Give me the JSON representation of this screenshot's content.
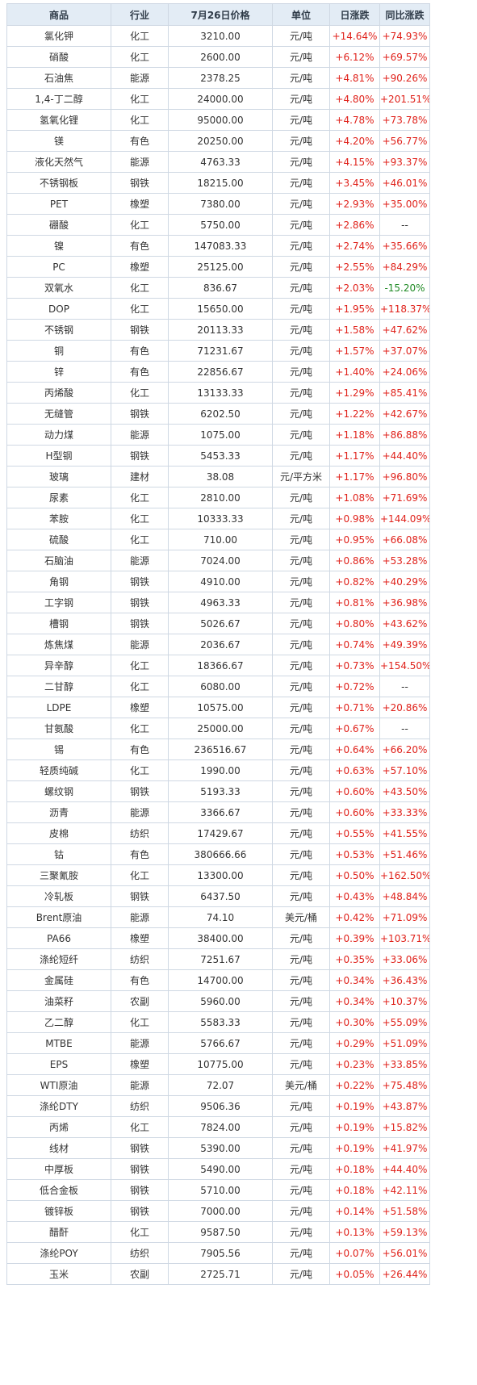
{
  "columns": [
    "商品",
    "行业",
    "7月26日价格",
    "单位",
    "日涨跌",
    "同比涨跌"
  ],
  "colors": {
    "up": "#e0221b",
    "down": "#1f8a24",
    "header_bg": "#e3ecf5",
    "border": "#cfd8e3"
  },
  "rows": [
    [
      "氯化钾",
      "化工",
      "3210.00",
      "元/吨",
      "+14.64%",
      "+74.93%"
    ],
    [
      "硝酸",
      "化工",
      "2600.00",
      "元/吨",
      "+6.12%",
      "+69.57%"
    ],
    [
      "石油焦",
      "能源",
      "2378.25",
      "元/吨",
      "+4.81%",
      "+90.26%"
    ],
    [
      "1,4-丁二醇",
      "化工",
      "24000.00",
      "元/吨",
      "+4.80%",
      "+201.51%"
    ],
    [
      "氢氧化锂",
      "化工",
      "95000.00",
      "元/吨",
      "+4.78%",
      "+73.78%"
    ],
    [
      "镁",
      "有色",
      "20250.00",
      "元/吨",
      "+4.20%",
      "+56.77%"
    ],
    [
      "液化天然气",
      "能源",
      "4763.33",
      "元/吨",
      "+4.15%",
      "+93.37%"
    ],
    [
      "不锈钢板",
      "钢铁",
      "18215.00",
      "元/吨",
      "+3.45%",
      "+46.01%"
    ],
    [
      "PET",
      "橡塑",
      "7380.00",
      "元/吨",
      "+2.93%",
      "+35.00%"
    ],
    [
      "硼酸",
      "化工",
      "5750.00",
      "元/吨",
      "+2.86%",
      "--"
    ],
    [
      "镍",
      "有色",
      "147083.33",
      "元/吨",
      "+2.74%",
      "+35.66%"
    ],
    [
      "PC",
      "橡塑",
      "25125.00",
      "元/吨",
      "+2.55%",
      "+84.29%"
    ],
    [
      "双氧水",
      "化工",
      "836.67",
      "元/吨",
      "+2.03%",
      "-15.20%"
    ],
    [
      "DOP",
      "化工",
      "15650.00",
      "元/吨",
      "+1.95%",
      "+118.37%"
    ],
    [
      "不锈钢",
      "钢铁",
      "20113.33",
      "元/吨",
      "+1.58%",
      "+47.62%"
    ],
    [
      "铜",
      "有色",
      "71231.67",
      "元/吨",
      "+1.57%",
      "+37.07%"
    ],
    [
      "锌",
      "有色",
      "22856.67",
      "元/吨",
      "+1.40%",
      "+24.06%"
    ],
    [
      "丙烯酸",
      "化工",
      "13133.33",
      "元/吨",
      "+1.29%",
      "+85.41%"
    ],
    [
      "无缝管",
      "钢铁",
      "6202.50",
      "元/吨",
      "+1.22%",
      "+42.67%"
    ],
    [
      "动力煤",
      "能源",
      "1075.00",
      "元/吨",
      "+1.18%",
      "+86.88%"
    ],
    [
      "H型钢",
      "钢铁",
      "5453.33",
      "元/吨",
      "+1.17%",
      "+44.40%"
    ],
    [
      "玻璃",
      "建材",
      "38.08",
      "元/平方米",
      "+1.17%",
      "+96.80%"
    ],
    [
      "尿素",
      "化工",
      "2810.00",
      "元/吨",
      "+1.08%",
      "+71.69%"
    ],
    [
      "苯胺",
      "化工",
      "10333.33",
      "元/吨",
      "+0.98%",
      "+144.09%"
    ],
    [
      "硫酸",
      "化工",
      "710.00",
      "元/吨",
      "+0.95%",
      "+66.08%"
    ],
    [
      "石脑油",
      "能源",
      "7024.00",
      "元/吨",
      "+0.86%",
      "+53.28%"
    ],
    [
      "角钢",
      "钢铁",
      "4910.00",
      "元/吨",
      "+0.82%",
      "+40.29%"
    ],
    [
      "工字钢",
      "钢铁",
      "4963.33",
      "元/吨",
      "+0.81%",
      "+36.98%"
    ],
    [
      "槽钢",
      "钢铁",
      "5026.67",
      "元/吨",
      "+0.80%",
      "+43.62%"
    ],
    [
      "炼焦煤",
      "能源",
      "2036.67",
      "元/吨",
      "+0.74%",
      "+49.39%"
    ],
    [
      "异辛醇",
      "化工",
      "18366.67",
      "元/吨",
      "+0.73%",
      "+154.50%"
    ],
    [
      "二甘醇",
      "化工",
      "6080.00",
      "元/吨",
      "+0.72%",
      "--"
    ],
    [
      "LDPE",
      "橡塑",
      "10575.00",
      "元/吨",
      "+0.71%",
      "+20.86%"
    ],
    [
      "甘氨酸",
      "化工",
      "25000.00",
      "元/吨",
      "+0.67%",
      "--"
    ],
    [
      "锡",
      "有色",
      "236516.67",
      "元/吨",
      "+0.64%",
      "+66.20%"
    ],
    [
      "轻质纯碱",
      "化工",
      "1990.00",
      "元/吨",
      "+0.63%",
      "+57.10%"
    ],
    [
      "螺纹钢",
      "钢铁",
      "5193.33",
      "元/吨",
      "+0.60%",
      "+43.50%"
    ],
    [
      "沥青",
      "能源",
      "3366.67",
      "元/吨",
      "+0.60%",
      "+33.33%"
    ],
    [
      "皮棉",
      "纺织",
      "17429.67",
      "元/吨",
      "+0.55%",
      "+41.55%"
    ],
    [
      "钴",
      "有色",
      "380666.66",
      "元/吨",
      "+0.53%",
      "+51.46%"
    ],
    [
      "三聚氰胺",
      "化工",
      "13300.00",
      "元/吨",
      "+0.50%",
      "+162.50%"
    ],
    [
      "冷轧板",
      "钢铁",
      "6437.50",
      "元/吨",
      "+0.43%",
      "+48.84%"
    ],
    [
      "Brent原油",
      "能源",
      "74.10",
      "美元/桶",
      "+0.42%",
      "+71.09%"
    ],
    [
      "PA66",
      "橡塑",
      "38400.00",
      "元/吨",
      "+0.39%",
      "+103.71%"
    ],
    [
      "涤纶短纤",
      "纺织",
      "7251.67",
      "元/吨",
      "+0.35%",
      "+33.06%"
    ],
    [
      "金属硅",
      "有色",
      "14700.00",
      "元/吨",
      "+0.34%",
      "+36.43%"
    ],
    [
      "油菜籽",
      "农副",
      "5960.00",
      "元/吨",
      "+0.34%",
      "+10.37%"
    ],
    [
      "乙二醇",
      "化工",
      "5583.33",
      "元/吨",
      "+0.30%",
      "+55.09%"
    ],
    [
      "MTBE",
      "能源",
      "5766.67",
      "元/吨",
      "+0.29%",
      "+51.09%"
    ],
    [
      "EPS",
      "橡塑",
      "10775.00",
      "元/吨",
      "+0.23%",
      "+33.85%"
    ],
    [
      "WTI原油",
      "能源",
      "72.07",
      "美元/桶",
      "+0.22%",
      "+75.48%"
    ],
    [
      "涤纶DTY",
      "纺织",
      "9506.36",
      "元/吨",
      "+0.19%",
      "+43.87%"
    ],
    [
      "丙烯",
      "化工",
      "7824.00",
      "元/吨",
      "+0.19%",
      "+15.82%"
    ],
    [
      "线材",
      "钢铁",
      "5390.00",
      "元/吨",
      "+0.19%",
      "+41.97%"
    ],
    [
      "中厚板",
      "钢铁",
      "5490.00",
      "元/吨",
      "+0.18%",
      "+44.40%"
    ],
    [
      "低合金板",
      "钢铁",
      "5710.00",
      "元/吨",
      "+0.18%",
      "+42.11%"
    ],
    [
      "镀锌板",
      "钢铁",
      "7000.00",
      "元/吨",
      "+0.14%",
      "+51.58%"
    ],
    [
      "醋酐",
      "化工",
      "9587.50",
      "元/吨",
      "+0.13%",
      "+59.13%"
    ],
    [
      "涤纶POY",
      "纺织",
      "7905.56",
      "元/吨",
      "+0.07%",
      "+56.01%"
    ],
    [
      "玉米",
      "农副",
      "2725.71",
      "元/吨",
      "+0.05%",
      "+26.44%"
    ]
  ]
}
